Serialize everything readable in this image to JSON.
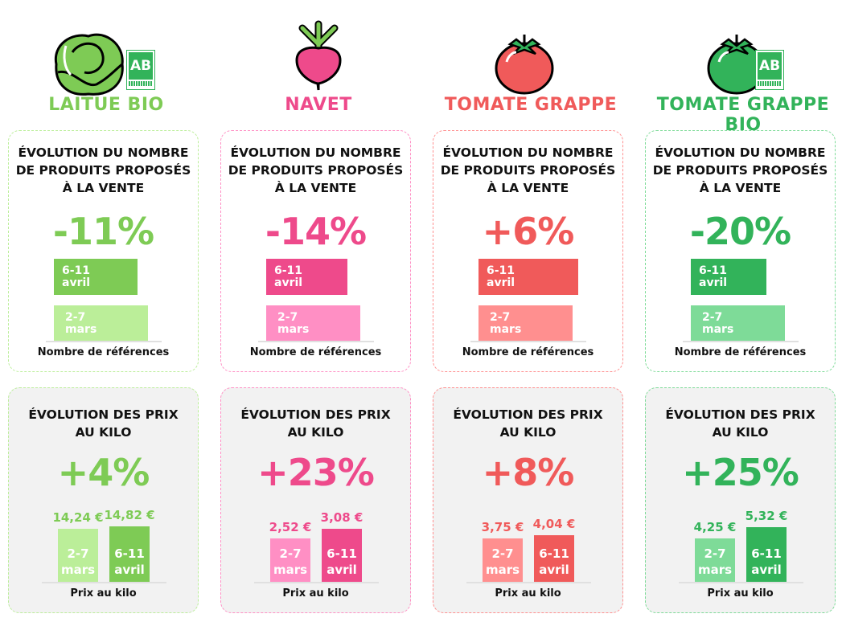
{
  "titles": {
    "count": [
      "ÉVOLUTION DU NOMBRE",
      "DE PRODUITS PROPOSÉS",
      "À LA VENTE"
    ],
    "price": [
      "ÉVOLUTION DES PRIX",
      "AU KILO"
    ],
    "count_axis": "Nombre de références",
    "price_axis": "Prix au kilo",
    "period_old": [
      "2-7",
      "mars"
    ],
    "period_new": [
      "6-11",
      "avril"
    ]
  },
  "chart_data": [
    {
      "type": "bar",
      "product": "LAITUE BIO",
      "icon": "lettuce-icon",
      "organic_logo": "AB",
      "logo_text": "CERTIFIÉ AB AGRICULTURE BIOLOGIQUE",
      "color": "#7ecb55",
      "light": "#bbee99",
      "count_change_label": "-11%",
      "count_change": -11,
      "price_change_label": "+4%",
      "prices": [
        {
          "period": "2-7 mars",
          "value": 14.24,
          "label": "14,24 €"
        },
        {
          "period": "6-11 avril",
          "value": 14.82,
          "label": "14,82 €"
        }
      ]
    },
    {
      "type": "bar",
      "product": "NAVET",
      "icon": "turnip-icon",
      "color": "#ee4a8b",
      "light": "#ff8fc4",
      "count_change_label": "-14%",
      "count_change": -14,
      "price_change_label": "+23%",
      "prices": [
        {
          "period": "2-7 mars",
          "value": 2.52,
          "label": "2,52 €"
        },
        {
          "period": "6-11 avril",
          "value": 3.08,
          "label": "3,08 €"
        }
      ]
    },
    {
      "type": "bar",
      "product": "TOMATE GRAPPE",
      "icon": "tomato-icon",
      "color": "#f05a5a",
      "light": "#ff8f8f",
      "count_change_label": "+6%",
      "count_change": 6,
      "price_change_label": "+8%",
      "prices": [
        {
          "period": "2-7 mars",
          "value": 3.75,
          "label": "3,75 €"
        },
        {
          "period": "6-11 avril",
          "value": 4.04,
          "label": "4,04 €"
        }
      ]
    },
    {
      "type": "bar",
      "product": "TOMATE GRAPPE BIO",
      "icon": "tomato-icon",
      "organic_logo": "AB",
      "logo_text": "CERTIFIÉ AB AGRICULTURE BIOLOGIQUE",
      "color": "#32b35a",
      "light": "#7edb98",
      "count_change_label": "-20%",
      "count_change": -20,
      "price_change_label": "+25%",
      "prices": [
        {
          "period": "2-7 mars",
          "value": 4.25,
          "label": "4,25 €"
        },
        {
          "period": "6-11 avril",
          "value": 5.32,
          "label": "5,32 €"
        }
      ]
    }
  ]
}
